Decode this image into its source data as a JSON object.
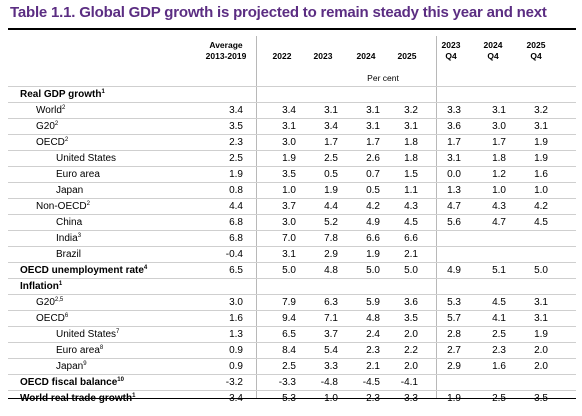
{
  "title": "Table 1.1. Global GDP growth is projected to remain steady this year and next",
  "columns": [
    {
      "line1": "Average",
      "line2": "2013-2019"
    },
    {
      "line1": "",
      "line2": "2022"
    },
    {
      "line1": "",
      "line2": "2023"
    },
    {
      "line1": "",
      "line2": "2024"
    },
    {
      "line1": "",
      "line2": "2025"
    },
    {
      "line1": "2023",
      "line2": "Q4"
    },
    {
      "line1": "2024",
      "line2": "Q4"
    },
    {
      "line1": "2025",
      "line2": "Q4"
    }
  ],
  "unit_label": "Per cent",
  "rows": [
    {
      "label": "Real GDP growth",
      "sup": "1",
      "bold": true,
      "indent": 0,
      "values": [
        "",
        "",
        "",
        "",
        "",
        "",
        "",
        ""
      ]
    },
    {
      "label": "World",
      "sup": "2",
      "bold": false,
      "indent": 1,
      "values": [
        "3.4",
        "3.4",
        "3.1",
        "3.1",
        "3.2",
        "3.3",
        "3.1",
        "3.2"
      ]
    },
    {
      "label": "G20",
      "sup": "2",
      "bold": false,
      "indent": 1,
      "values": [
        "3.5",
        "3.1",
        "3.4",
        "3.1",
        "3.1",
        "3.6",
        "3.0",
        "3.1"
      ]
    },
    {
      "label": "OECD",
      "sup": "2",
      "bold": false,
      "indent": 1,
      "values": [
        "2.3",
        "3.0",
        "1.7",
        "1.7",
        "1.8",
        "1.7",
        "1.7",
        "1.9"
      ]
    },
    {
      "label": "United States",
      "sup": "",
      "bold": false,
      "indent": 2,
      "values": [
        "2.5",
        "1.9",
        "2.5",
        "2.6",
        "1.8",
        "3.1",
        "1.8",
        "1.9"
      ]
    },
    {
      "label": "Euro area",
      "sup": "",
      "bold": false,
      "indent": 2,
      "values": [
        "1.9",
        "3.5",
        "0.5",
        "0.7",
        "1.5",
        "0.0",
        "1.2",
        "1.6"
      ]
    },
    {
      "label": "Japan",
      "sup": "",
      "bold": false,
      "indent": 2,
      "values": [
        "0.8",
        "1.0",
        "1.9",
        "0.5",
        "1.1",
        "1.3",
        "1.0",
        "1.0"
      ]
    },
    {
      "label": "Non-OECD",
      "sup": "2",
      "bold": false,
      "indent": 1,
      "values": [
        "4.4",
        "3.7",
        "4.4",
        "4.2",
        "4.3",
        "4.7",
        "4.3",
        "4.2"
      ]
    },
    {
      "label": "China",
      "sup": "",
      "bold": false,
      "indent": 2,
      "values": [
        "6.8",
        "3.0",
        "5.2",
        "4.9",
        "4.5",
        "5.6",
        "4.7",
        "4.5"
      ]
    },
    {
      "label": "India",
      "sup": "3",
      "bold": false,
      "indent": 2,
      "values": [
        "6.8",
        "7.0",
        "7.8",
        "6.6",
        "6.6",
        "",
        "",
        ""
      ]
    },
    {
      "label": "Brazil",
      "sup": "",
      "bold": false,
      "indent": 2,
      "values": [
        "-0.4",
        "3.1",
        "2.9",
        "1.9",
        "2.1",
        "",
        "",
        ""
      ]
    },
    {
      "label": "OECD unemployment rate",
      "sup": "4",
      "bold": true,
      "indent": 0,
      "values": [
        "6.5",
        "5.0",
        "4.8",
        "5.0",
        "5.0",
        "4.9",
        "5.1",
        "5.0"
      ]
    },
    {
      "label": "Inflation",
      "sup": "1",
      "bold": true,
      "indent": 0,
      "values": [
        "",
        "",
        "",
        "",
        "",
        "",
        "",
        ""
      ]
    },
    {
      "label": "G20",
      "sup": "2,5",
      "bold": false,
      "indent": 1,
      "values": [
        "3.0",
        "7.9",
        "6.3",
        "5.9",
        "3.6",
        "5.3",
        "4.5",
        "3.1"
      ]
    },
    {
      "label": "OECD",
      "sup": "6",
      "bold": false,
      "indent": 1,
      "values": [
        "1.6",
        "9.4",
        "7.1",
        "4.8",
        "3.5",
        "5.7",
        "4.1",
        "3.1"
      ]
    },
    {
      "label": "United States",
      "sup": "7",
      "bold": false,
      "indent": 2,
      "values": [
        "1.3",
        "6.5",
        "3.7",
        "2.4",
        "2.0",
        "2.8",
        "2.5",
        "1.9"
      ]
    },
    {
      "label": "Euro area",
      "sup": "8",
      "bold": false,
      "indent": 2,
      "values": [
        "0.9",
        "8.4",
        "5.4",
        "2.3",
        "2.2",
        "2.7",
        "2.3",
        "2.0"
      ]
    },
    {
      "label": "Japan",
      "sup": "9",
      "bold": false,
      "indent": 2,
      "values": [
        "0.9",
        "2.5",
        "3.3",
        "2.1",
        "2.0",
        "2.9",
        "1.6",
        "2.0"
      ]
    },
    {
      "label": "OECD fiscal balance",
      "sup": "10",
      "bold": true,
      "indent": 0,
      "values": [
        "-3.2",
        "-3.3",
        "-4.8",
        "-4.5",
        "-4.1",
        "",
        "",
        ""
      ]
    },
    {
      "label": "World real trade growth",
      "sup": "1",
      "bold": true,
      "indent": 0,
      "values": [
        "3.4",
        "5.3",
        "1.0",
        "2.3",
        "3.3",
        "1.9",
        "2.5",
        "3.5"
      ]
    }
  ]
}
